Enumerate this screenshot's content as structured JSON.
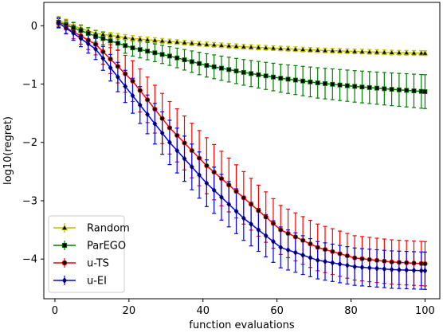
{
  "chart_data": {
    "type": "line",
    "title": "",
    "xlabel": "function evaluations",
    "ylabel": "log10(regret)",
    "xlim": [
      -3,
      104
    ],
    "ylim": [
      -4.68,
      0.4
    ],
    "xticks": [
      0,
      20,
      40,
      60,
      80,
      100
    ],
    "xtick_labels": [
      "0",
      "20",
      "40",
      "60",
      "80",
      "100"
    ],
    "yticks": [
      0,
      -1,
      -2,
      -3,
      -4
    ],
    "ytick_labels": [
      "0",
      "−1",
      "−2",
      "−3",
      "−4"
    ],
    "grid": false,
    "legend": "lower-left",
    "x": [
      1,
      11,
      21,
      31,
      41,
      51,
      61,
      71,
      81,
      91,
      100
    ],
    "series": [
      {
        "name": "Random",
        "color": "#bfbf00",
        "marker": "triangle",
        "values": [
          0.08,
          -0.13,
          -0.22,
          -0.27,
          -0.32,
          -0.36,
          -0.39,
          -0.42,
          -0.44,
          -0.46,
          -0.47
        ],
        "err": [
          0.08,
          0.05,
          0.05,
          0.04,
          0.04,
          0.04,
          0.04,
          0.04,
          0.04,
          0.04,
          0.04
        ]
      },
      {
        "name": "ParEGO",
        "color": "#008000",
        "marker": "square",
        "values": [
          0.06,
          -0.18,
          -0.38,
          -0.52,
          -0.68,
          -0.8,
          -0.9,
          -0.98,
          -1.04,
          -1.09,
          -1.13
        ],
        "err": [
          0.08,
          0.1,
          0.14,
          0.16,
          0.2,
          0.22,
          0.24,
          0.26,
          0.27,
          0.28,
          0.29
        ]
      },
      {
        "name": "u-TS",
        "color": "#ff0000",
        "marker": "circle",
        "values": [
          0.04,
          -0.32,
          -0.95,
          -1.75,
          -2.4,
          -2.95,
          -3.5,
          -3.8,
          -3.98,
          -4.05,
          -4.08
        ],
        "err": [
          0.08,
          0.18,
          0.35,
          0.45,
          0.48,
          0.45,
          0.42,
          0.4,
          0.38,
          0.38,
          0.38
        ]
      },
      {
        "name": "u-EI",
        "color": "#0000ff",
        "marker": "diamond",
        "values": [
          0.05,
          -0.4,
          -1.2,
          -2.0,
          -2.7,
          -3.3,
          -3.8,
          -4.02,
          -4.13,
          -4.18,
          -4.2
        ],
        "err": [
          0.08,
          0.18,
          0.3,
          0.38,
          0.4,
          0.38,
          0.35,
          0.32,
          0.32,
          0.32,
          0.32
        ]
      }
    ]
  }
}
